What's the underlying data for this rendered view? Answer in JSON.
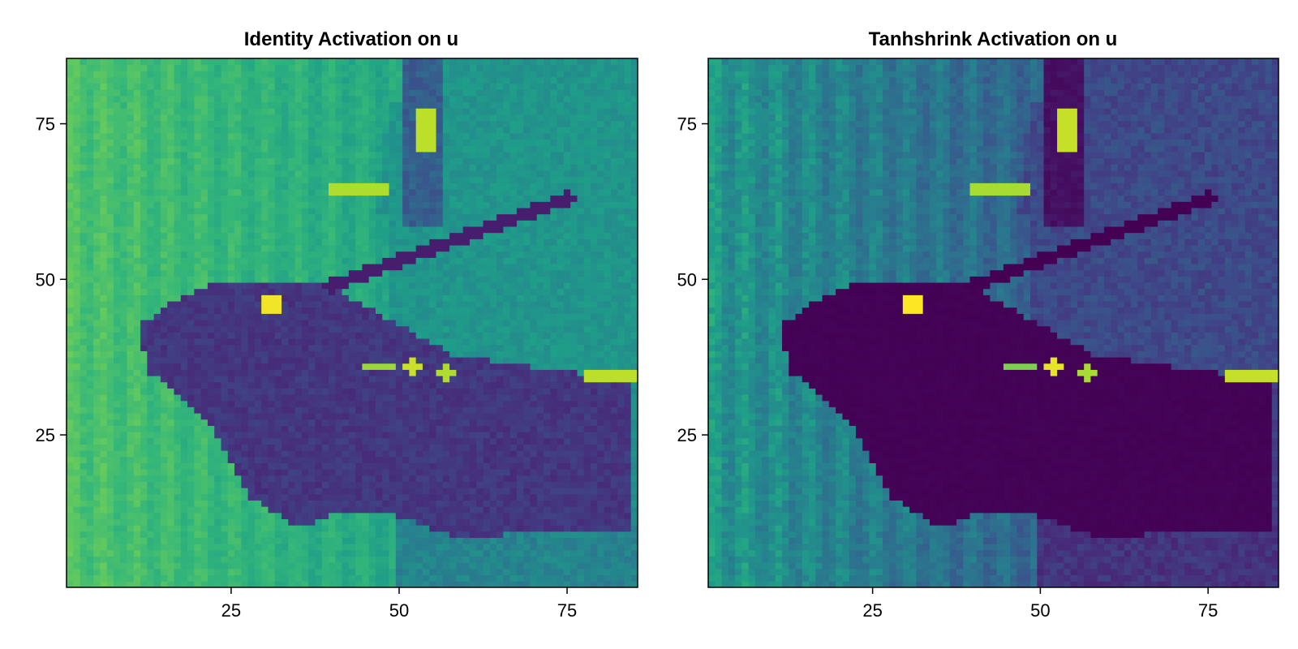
{
  "chart_data": [
    {
      "type": "heatmap",
      "title": "Identity Activation on u",
      "xlabel": "",
      "ylabel": "",
      "xlim": [
        0.5,
        85.5
      ],
      "ylim": [
        0.5,
        85.5
      ],
      "xticks": [
        25,
        50,
        75
      ],
      "yticks": [
        25,
        50,
        75
      ],
      "colormap": "viridis",
      "grid": false
    },
    {
      "type": "heatmap",
      "title": "Tanhshrink Activation on u",
      "xlabel": "",
      "ylabel": "",
      "xlim": [
        0.5,
        85.5
      ],
      "ylim": [
        0.5,
        85.5
      ],
      "xticks": [
        25,
        50,
        75
      ],
      "yticks": [
        25,
        50,
        75
      ],
      "colormap": "viridis",
      "grid": false
    }
  ],
  "colors": {
    "viridis_dark": "#440154",
    "viridis_mid": "#21908d",
    "viridis_bright": "#fde725"
  }
}
